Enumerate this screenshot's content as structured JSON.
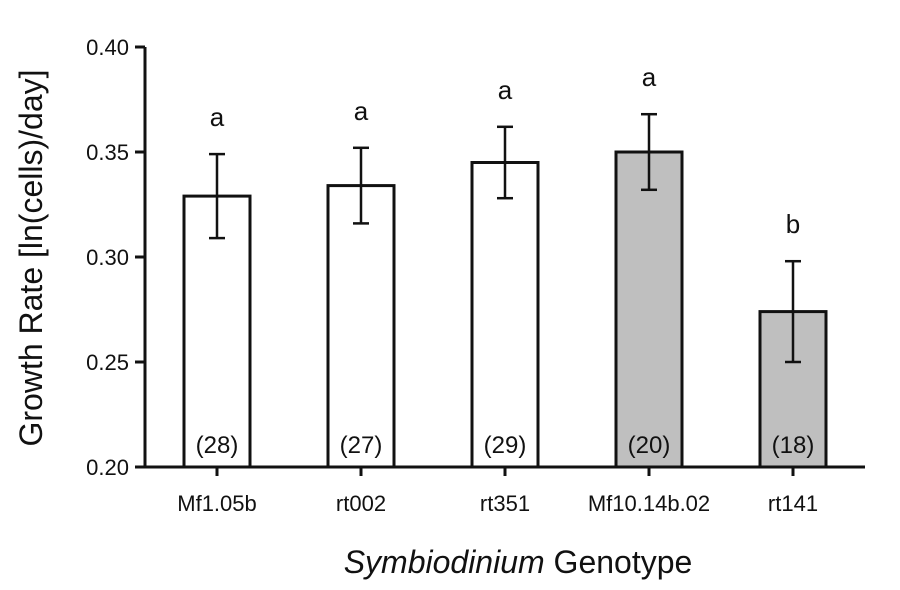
{
  "chart_data": {
    "type": "bar",
    "xlabel_italic": "Symbiodinium",
    "xlabel_rest": " Genotype",
    "ylabel": "Growth Rate [ln(cells)/day]",
    "ylim": [
      0.2,
      0.4
    ],
    "yticks": [
      0.2,
      0.25,
      0.3,
      0.35,
      0.4
    ],
    "ytick_labels": [
      "0.20",
      "0.25",
      "0.30",
      "0.35",
      "0.40"
    ],
    "categories": [
      "Mf1.05b",
      "rt002",
      "rt351",
      "Mf10.14b.02",
      "rt141"
    ],
    "values": [
      0.329,
      0.334,
      0.345,
      0.35,
      0.274
    ],
    "error": [
      0.02,
      0.018,
      0.017,
      0.018,
      0.024
    ],
    "significance": [
      "a",
      "a",
      "a",
      "a",
      "b"
    ],
    "n_labels": [
      "(28)",
      "(27)",
      "(29)",
      "(20)",
      "(18)"
    ],
    "bar_fill": [
      "#ffffff",
      "#ffffff",
      "#ffffff",
      "#bfbfbf",
      "#bfbfbf"
    ],
    "grid": false
  }
}
